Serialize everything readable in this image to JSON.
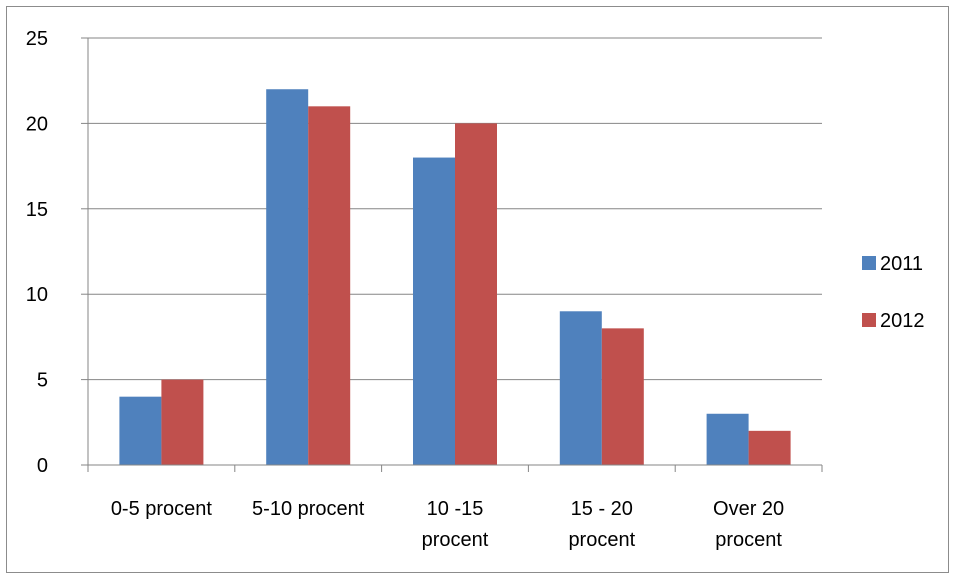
{
  "chart_data": {
    "type": "bar",
    "categories": [
      [
        "0-5 procent"
      ],
      [
        "5-10 procent"
      ],
      [
        "10 -15",
        "procent"
      ],
      [
        "15 - 20",
        "procent"
      ],
      [
        "Over 20",
        "procent"
      ]
    ],
    "series": [
      {
        "name": "2011",
        "color": "#4f81bd",
        "values": [
          4,
          22,
          18,
          9,
          3
        ]
      },
      {
        "name": "2012",
        "color": "#c0504d",
        "values": [
          5,
          21,
          20,
          8,
          2
        ]
      }
    ],
    "yticks": [
      "0",
      "5",
      "10",
      "15",
      "20",
      "25"
    ],
    "ylim": [
      0,
      25
    ],
    "grid": true,
    "legend_position": "right",
    "title": "",
    "xlabel": "",
    "ylabel": ""
  }
}
